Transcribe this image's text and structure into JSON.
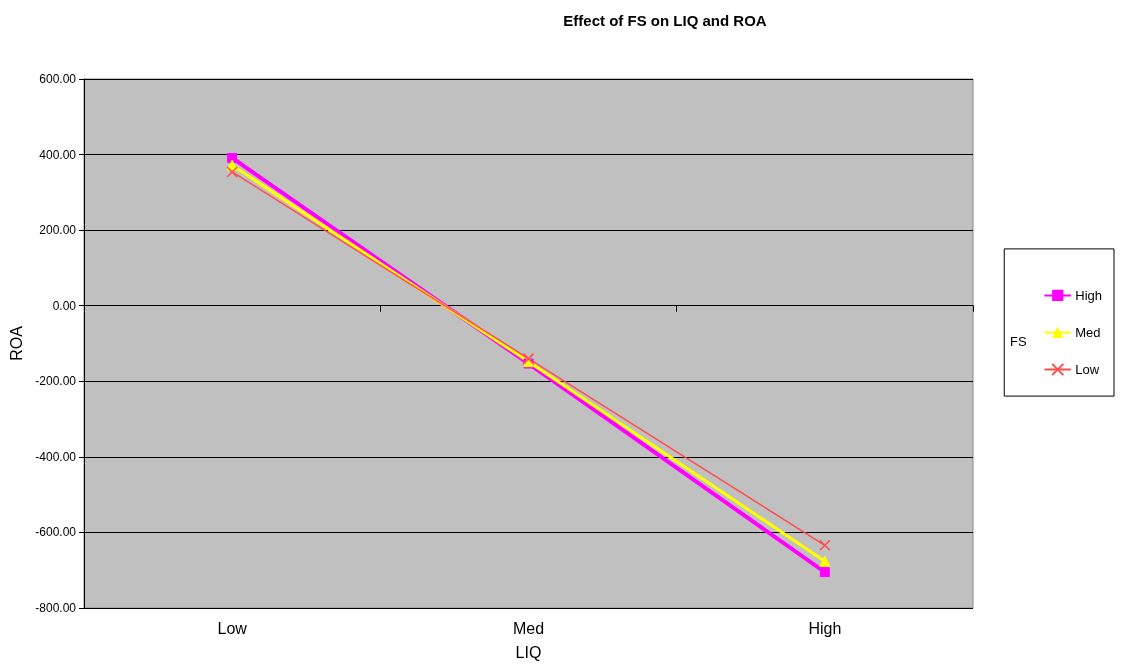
{
  "chart_data": {
    "type": "line",
    "title": "Effect of FS on LIQ and ROA",
    "xlabel": "LIQ",
    "ylabel": "ROA",
    "legend_title": "FS",
    "categories": [
      "Low",
      "Med",
      "High"
    ],
    "series": [
      {
        "name": "High",
        "color": "#ff00ff",
        "marker": "square",
        "values": [
          391,
          -153,
          -705
        ]
      },
      {
        "name": "Med",
        "color": "#ffff00",
        "marker": "triangle",
        "values": [
          372,
          -148,
          -676
        ]
      },
      {
        "name": "Low",
        "color": "#ff4d4d",
        "marker": "cross",
        "values": [
          354,
          -140,
          -634
        ]
      }
    ],
    "ylim": [
      -800,
      600
    ],
    "yticks": [
      {
        "value": -800,
        "label": "-800.00"
      },
      {
        "value": -600,
        "label": "-600.00"
      },
      {
        "value": -400,
        "label": "-400.00"
      },
      {
        "value": -200,
        "label": "-200.00"
      },
      {
        "value": 0,
        "label": "0.00"
      },
      {
        "value": 200,
        "label": "200.00"
      },
      {
        "value": 400,
        "label": "400.00"
      },
      {
        "value": 600,
        "label": "600.00"
      }
    ],
    "grid": "y",
    "legend": "right"
  }
}
